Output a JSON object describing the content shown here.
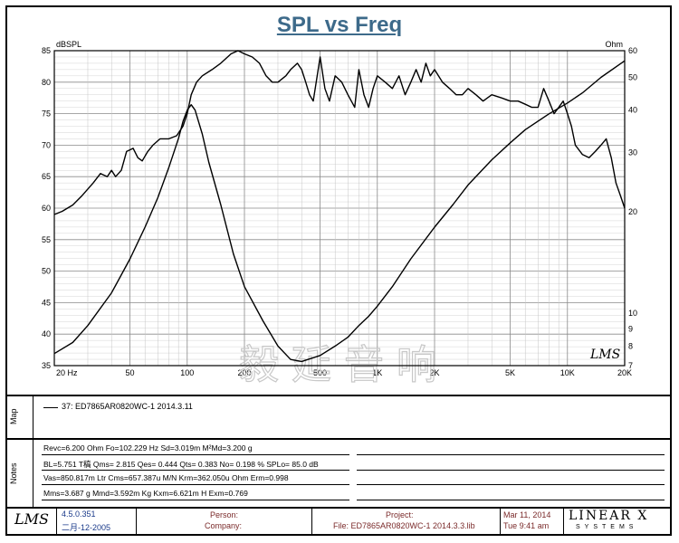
{
  "chart_data": {
    "type": "line",
    "title": "SPL vs Freq",
    "y_left": {
      "label": "dBSPL",
      "min": 35,
      "max": 85,
      "ticks": [
        85,
        80,
        75,
        70,
        65,
        60,
        55,
        50,
        45,
        40,
        35
      ]
    },
    "y_right": {
      "label": "Ohm",
      "scale": "log",
      "min": 7,
      "max": 60,
      "ticks": [
        60,
        50,
        40,
        30,
        20,
        10,
        9,
        8,
        7
      ]
    },
    "x": {
      "scale": "log",
      "min": 20,
      "max": 20000,
      "tick_labels": [
        {
          "value": 20,
          "label": "20  Hz"
        },
        {
          "value": 50,
          "label": "50"
        },
        {
          "value": 100,
          "label": "100"
        },
        {
          "value": 200,
          "label": "200"
        },
        {
          "value": 500,
          "label": "500"
        },
        {
          "value": 1000,
          "label": "1K"
        },
        {
          "value": 2000,
          "label": "2K"
        },
        {
          "value": 5000,
          "label": "5K"
        },
        {
          "value": 10000,
          "label": "10K"
        },
        {
          "value": 20000,
          "label": "20K"
        }
      ]
    },
    "series": [
      {
        "name": "SPL",
        "axis": "left",
        "points": [
          [
            20,
            59
          ],
          [
            22,
            59.5
          ],
          [
            25,
            60.5
          ],
          [
            28,
            62
          ],
          [
            32,
            64
          ],
          [
            35,
            65.5
          ],
          [
            38,
            65
          ],
          [
            40,
            66
          ],
          [
            42,
            65
          ],
          [
            45,
            66
          ],
          [
            48,
            69
          ],
          [
            52,
            69.5
          ],
          [
            55,
            68
          ],
          [
            58,
            67.5
          ],
          [
            62,
            69
          ],
          [
            66,
            70
          ],
          [
            72,
            71
          ],
          [
            80,
            71
          ],
          [
            88,
            71.5
          ],
          [
            95,
            73
          ],
          [
            100,
            75
          ],
          [
            105,
            78
          ],
          [
            112,
            80
          ],
          [
            120,
            81
          ],
          [
            135,
            82
          ],
          [
            150,
            83
          ],
          [
            170,
            84.5
          ],
          [
            185,
            85
          ],
          [
            200,
            84.5
          ],
          [
            220,
            84
          ],
          [
            240,
            83
          ],
          [
            260,
            81
          ],
          [
            280,
            80
          ],
          [
            300,
            80
          ],
          [
            330,
            81
          ],
          [
            350,
            82
          ],
          [
            380,
            83
          ],
          [
            400,
            82
          ],
          [
            420,
            80
          ],
          [
            440,
            78
          ],
          [
            460,
            77
          ],
          [
            500,
            84
          ],
          [
            530,
            79
          ],
          [
            560,
            77
          ],
          [
            600,
            81
          ],
          [
            650,
            80
          ],
          [
            700,
            78
          ],
          [
            760,
            76
          ],
          [
            800,
            82
          ],
          [
            850,
            78
          ],
          [
            900,
            76
          ],
          [
            950,
            79
          ],
          [
            1000,
            81
          ],
          [
            1100,
            80
          ],
          [
            1200,
            79
          ],
          [
            1300,
            81
          ],
          [
            1400,
            78
          ],
          [
            1500,
            80
          ],
          [
            1600,
            82
          ],
          [
            1700,
            80
          ],
          [
            1800,
            83
          ],
          [
            1900,
            81
          ],
          [
            2000,
            82
          ],
          [
            2200,
            80
          ],
          [
            2400,
            79
          ],
          [
            2600,
            78
          ],
          [
            2800,
            78
          ],
          [
            3000,
            79
          ],
          [
            3300,
            78
          ],
          [
            3600,
            77
          ],
          [
            4000,
            78
          ],
          [
            4500,
            77.5
          ],
          [
            5000,
            77
          ],
          [
            5500,
            77
          ],
          [
            6000,
            76.5
          ],
          [
            6500,
            76
          ],
          [
            7000,
            76
          ],
          [
            7500,
            79
          ],
          [
            8000,
            77
          ],
          [
            8500,
            75
          ],
          [
            9000,
            76
          ],
          [
            9500,
            77
          ],
          [
            10000,
            75
          ],
          [
            10500,
            73
          ],
          [
            11000,
            70
          ],
          [
            12000,
            68.5
          ],
          [
            13000,
            68
          ],
          [
            14000,
            69
          ],
          [
            15000,
            70
          ],
          [
            16000,
            71
          ],
          [
            17000,
            68
          ],
          [
            18000,
            64
          ],
          [
            19000,
            62
          ],
          [
            20000,
            60
          ]
        ]
      },
      {
        "name": "Impedance",
        "axis": "right",
        "points": [
          [
            20,
            7.6
          ],
          [
            25,
            8.2
          ],
          [
            30,
            9.2
          ],
          [
            40,
            11.5
          ],
          [
            50,
            14.5
          ],
          [
            60,
            18
          ],
          [
            70,
            22
          ],
          [
            80,
            27
          ],
          [
            90,
            33
          ],
          [
            95,
            37
          ],
          [
            100,
            40
          ],
          [
            105,
            41.5
          ],
          [
            110,
            40
          ],
          [
            120,
            34
          ],
          [
            130,
            28
          ],
          [
            150,
            21
          ],
          [
            175,
            15
          ],
          [
            200,
            12
          ],
          [
            250,
            9.5
          ],
          [
            300,
            8
          ],
          [
            350,
            7.3
          ],
          [
            400,
            7.2
          ],
          [
            500,
            7.5
          ],
          [
            600,
            8
          ],
          [
            700,
            8.5
          ],
          [
            800,
            9.2
          ],
          [
            900,
            9.8
          ],
          [
            1000,
            10.5
          ],
          [
            1200,
            12
          ],
          [
            1500,
            14.5
          ],
          [
            2000,
            18
          ],
          [
            2500,
            21
          ],
          [
            3000,
            24
          ],
          [
            4000,
            28.5
          ],
          [
            5000,
            32
          ],
          [
            6000,
            35
          ],
          [
            8000,
            39
          ],
          [
            10000,
            42
          ],
          [
            12000,
            45
          ],
          [
            15000,
            50
          ],
          [
            20000,
            56
          ]
        ]
      }
    ],
    "grid": true
  },
  "watermark": "毅延音响",
  "lms_logo": "LMS",
  "map": {
    "label": "Map",
    "entry": "37: ED7865AR0820WC-1     2014.3.11"
  },
  "notes": {
    "label": "Notes",
    "lines": [
      "Revc=6.200 Ohm  Fo=102.229 Hz  Sd=3.019m M²Md=3.200 g",
      "BL=5.751 T稿  Qms= 2.815  Qes= 0.444  Qts= 0.383  No= 0.198 %  SPLo= 85.0 dB",
      "Vas=850.817m Ltr  Cms=657.387u M/N  Krm=362.050u Ohm  Erm=0.998",
      "Mms=3.687 g  Mmd=3.592m Kg  Kxm=6.621m H  Exm=0.769"
    ]
  },
  "footer": {
    "version": "4.5.0.351",
    "date_built": "二月-12-2005",
    "person_label": "Person:",
    "company_label": "Company:",
    "project_label": "Project:",
    "file": "File: ED7865AR0820WC-1  2014.3.3.lib",
    "date": "Mar 11, 2014",
    "time": "Tue  9:41 am",
    "brand": "LINEAR X",
    "brand_sub": "SYSTEMS"
  }
}
